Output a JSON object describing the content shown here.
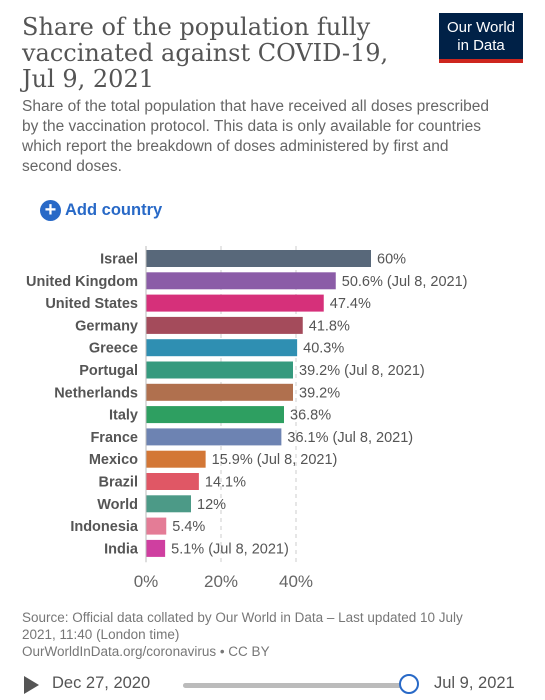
{
  "header": {
    "title_lines": [
      "Share of the population fully",
      "vaccinated against COVID-19,",
      "Jul 9, 2021"
    ],
    "logo_lines": [
      "Our World",
      "in Data"
    ],
    "subtitle": "Share of the total population that have received all doses prescribed by the vaccination protocol. This data is only available for countries which report the breakdown of doses administered by first and second doses."
  },
  "controls": {
    "add_country_label": "Add country"
  },
  "chart_data": {
    "type": "bar",
    "orientation": "horizontal",
    "categories": [
      "Israel",
      "United Kingdom",
      "United States",
      "Germany",
      "Greece",
      "Portugal",
      "Netherlands",
      "Italy",
      "France",
      "Mexico",
      "Brazil",
      "World",
      "Indonesia",
      "India"
    ],
    "values": [
      60,
      50.6,
      47.4,
      41.8,
      40.3,
      39.2,
      39.2,
      36.8,
      36.1,
      15.9,
      14.1,
      12,
      5.4,
      5.1
    ],
    "value_labels": [
      "60%",
      "50.6% (Jul 8, 2021)",
      "47.4%",
      "41.8%",
      "40.3%",
      "39.2% (Jul 8, 2021)",
      "39.2%",
      "36.8%",
      "36.1% (Jul 8, 2021)",
      "15.9% (Jul 8, 2021)",
      "14.1%",
      "12%",
      "5.4%",
      "5.1% (Jul 8, 2021)"
    ],
    "colors": [
      "#58687a",
      "#8b5ca7",
      "#d6307a",
      "#a44b5b",
      "#2f8fb2",
      "#359a7e",
      "#b0704e",
      "#2e9f61",
      "#6d83b2",
      "#d37736",
      "#e05765",
      "#4c9a87",
      "#e47c96",
      "#cf3fa0"
    ],
    "x_ticks": [
      0,
      20,
      40
    ],
    "x_tick_labels": [
      "0%",
      "20%",
      "40%"
    ],
    "xlim": [
      0,
      60
    ],
    "grid": true,
    "title": "Share of the population fully vaccinated against COVID-19, Jul 9, 2021"
  },
  "footer": {
    "source_lines": [
      "Source: Official data collated by Our World in Data – Last updated 10 July",
      "2021, 11:40 (London time)",
      "OurWorldInData.org/coronavirus • CC BY"
    ]
  },
  "timeline": {
    "start_label": "Dec 27, 2020",
    "end_label": "Jul 9, 2021",
    "position": 1.0
  }
}
